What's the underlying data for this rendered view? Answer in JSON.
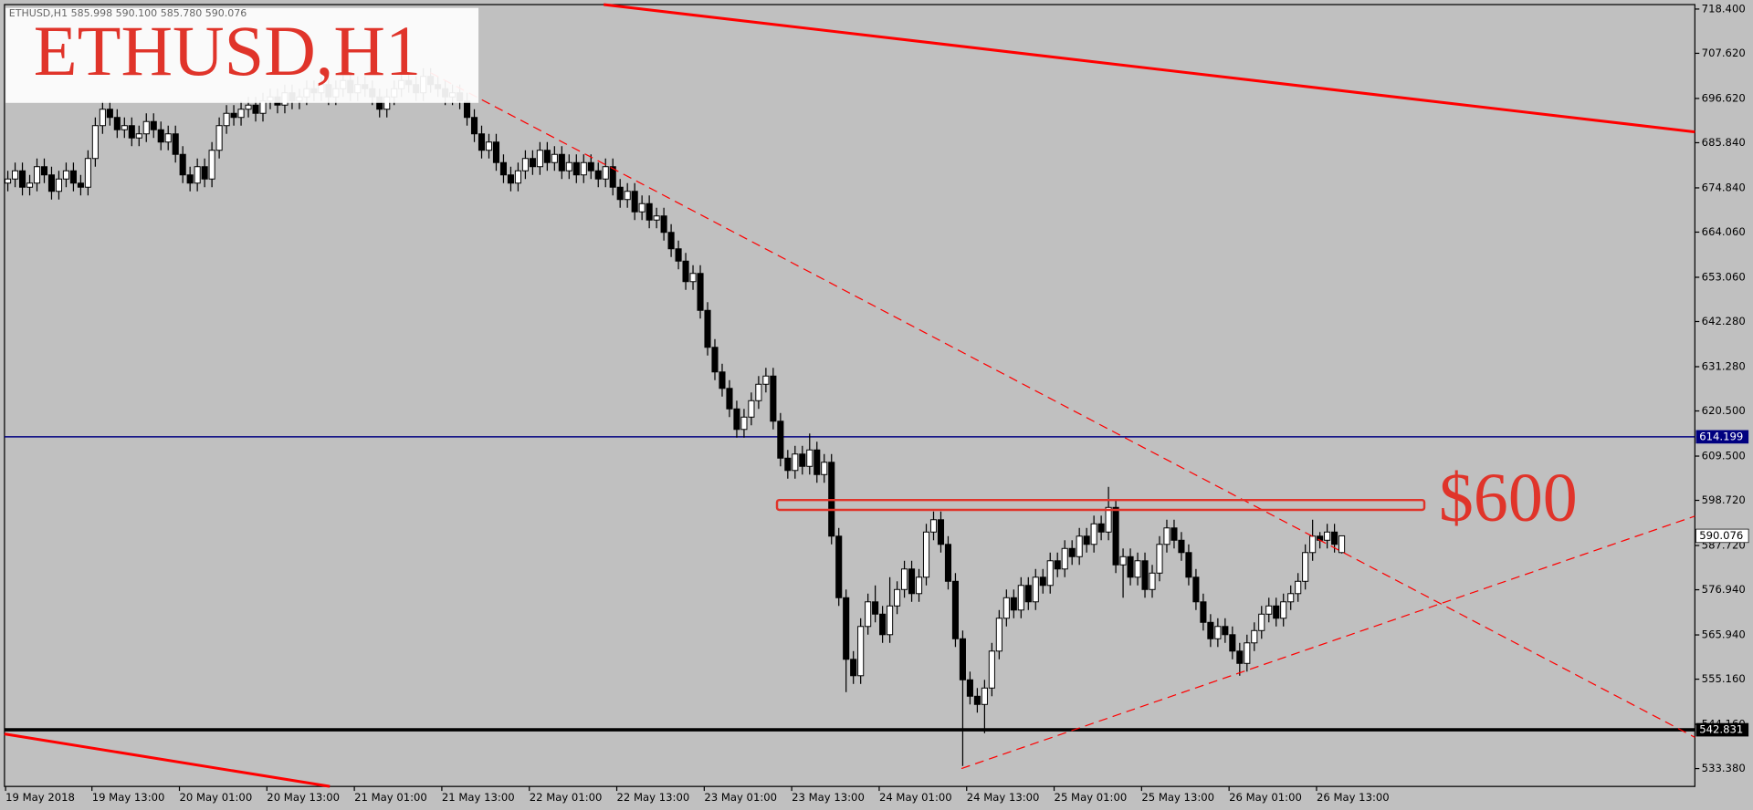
{
  "chart_data": {
    "type": "candlestick",
    "title": "ETHUSD,H1",
    "header": "ETHUSD,H1  585.998 590.100 585.780 590.076",
    "annotation": "$600",
    "zone": {
      "low": 596.4,
      "high": 598.8
    },
    "levels": [
      {
        "value": 614.199,
        "color": "#000080"
      },
      {
        "value": 542.831,
        "color": "#000000"
      }
    ],
    "ylim": [
      529.03,
      719.49
    ],
    "yticks": [
      {
        "value": 718.4,
        "label": "718.400"
      },
      {
        "value": 707.62,
        "label": "707.620"
      },
      {
        "value": 696.62,
        "label": "696.620"
      },
      {
        "value": 685.84,
        "label": "685.840"
      },
      {
        "value": 674.84,
        "label": "674.840"
      },
      {
        "value": 664.06,
        "label": "664.060"
      },
      {
        "value": 653.06,
        "label": "653.060"
      },
      {
        "value": 642.28,
        "label": "642.280"
      },
      {
        "value": 631.28,
        "label": "631.280"
      },
      {
        "value": 620.5,
        "label": "620.500"
      },
      {
        "value": 609.5,
        "label": "609.500"
      },
      {
        "value": 598.72,
        "label": "598.720"
      },
      {
        "value": 587.72,
        "label": "587.720"
      },
      {
        "value": 576.94,
        "label": "576.940"
      },
      {
        "value": 565.94,
        "label": "565.940"
      },
      {
        "value": 555.16,
        "label": "555.160"
      },
      {
        "value": 544.16,
        "label": "544.160"
      },
      {
        "value": 533.38,
        "label": "533.380"
      }
    ],
    "categories": [
      "19 May 2018",
      null,
      null,
      null,
      null,
      null,
      null,
      null,
      null,
      null,
      null,
      null,
      "19 May 13:00",
      null,
      null,
      null,
      null,
      null,
      null,
      null,
      null,
      null,
      null,
      null,
      "20 May 01:00",
      null,
      null,
      null,
      null,
      null,
      null,
      null,
      null,
      null,
      null,
      null,
      "20 May 13:00",
      null,
      null,
      null,
      null,
      null,
      null,
      null,
      null,
      null,
      null,
      null,
      "21 May 01:00",
      null,
      null,
      null,
      null,
      null,
      null,
      null,
      null,
      null,
      null,
      null,
      "21 May 13:00",
      null,
      null,
      null,
      null,
      null,
      null,
      null,
      null,
      null,
      null,
      null,
      "22 May 01:00",
      null,
      null,
      null,
      null,
      null,
      null,
      null,
      null,
      null,
      null,
      null,
      "22 May 13:00",
      null,
      null,
      null,
      null,
      null,
      null,
      null,
      null,
      null,
      null,
      null,
      "23 May 01:00",
      null,
      null,
      null,
      null,
      null,
      null,
      null,
      null,
      null,
      null,
      null,
      "23 May 13:00",
      null,
      null,
      null,
      null,
      null,
      null,
      null,
      null,
      null,
      null,
      null,
      "24 May 01:00",
      null,
      null,
      null,
      null,
      null,
      null,
      null,
      null,
      null,
      null,
      null,
      "24 May 13:00",
      null,
      null,
      null,
      null,
      null,
      null,
      null,
      null,
      null,
      null,
      null,
      "25 May 01:00",
      null,
      null,
      null,
      null,
      null,
      null,
      null,
      null,
      null,
      null,
      null,
      "25 May 13:00",
      null,
      null,
      null,
      null,
      null,
      null,
      null,
      null,
      null,
      null,
      null,
      "26 May 01:00",
      null,
      null,
      null,
      null,
      null,
      null,
      null,
      null,
      null,
      null,
      null,
      "26 May 13:00",
      null,
      null,
      null
    ],
    "open": [
      676,
      677,
      679,
      675,
      676,
      680,
      678,
      674,
      677,
      679,
      676,
      675,
      682,
      690,
      694,
      692,
      689,
      690,
      687,
      688,
      691,
      689,
      686,
      688,
      683,
      678,
      676,
      680,
      677,
      684,
      690,
      693,
      692,
      694,
      695,
      693,
      696,
      697,
      695,
      698,
      696,
      697,
      699,
      698,
      700,
      697,
      699,
      701,
      698,
      700,
      699,
      697,
      694,
      697,
      699,
      701,
      700,
      698,
      702,
      700,
      699,
      697,
      698,
      696,
      692,
      688,
      684,
      686,
      681,
      678,
      676,
      679,
      682,
      680,
      684,
      681,
      683,
      679,
      681,
      678,
      681,
      679,
      677,
      680,
      675,
      672,
      674,
      669,
      671,
      667,
      668,
      664,
      660,
      657,
      652,
      654,
      645,
      636,
      630,
      626,
      621,
      616,
      619,
      623,
      627,
      629,
      618,
      609,
      606,
      610,
      607,
      611,
      605,
      608,
      590,
      575,
      560,
      556,
      568,
      574,
      571,
      566,
      573,
      577,
      582,
      576,
      580,
      591,
      594,
      588,
      579,
      565,
      555,
      551,
      549,
      553,
      562,
      570,
      575,
      572,
      578,
      574,
      580,
      578,
      584,
      582,
      587,
      585,
      590,
      588,
      593,
      591,
      597,
      583,
      585,
      580,
      584,
      577,
      581,
      588,
      592,
      589,
      586,
      580,
      574,
      569,
      565,
      568,
      566,
      562,
      559,
      564,
      567,
      571,
      573,
      570,
      574,
      576,
      579,
      586,
      590,
      589,
      591,
      585.998
    ],
    "high": [
      679,
      681,
      681,
      678,
      682,
      682,
      680,
      679,
      681,
      681,
      678,
      684,
      692,
      696,
      696,
      694,
      692,
      692,
      690,
      693,
      693,
      691,
      690,
      690,
      685,
      680,
      682,
      682,
      686,
      692,
      695,
      695,
      696,
      697,
      697,
      698,
      699,
      699,
      700,
      700,
      699,
      701,
      701,
      702,
      702,
      701,
      703,
      703,
      702,
      702,
      701,
      699,
      699,
      701,
      703,
      703,
      702,
      704,
      704,
      702,
      701,
      700,
      700,
      698,
      694,
      690,
      688,
      688,
      683,
      680,
      681,
      684,
      684,
      686,
      686,
      685,
      685,
      683,
      683,
      683,
      683,
      681,
      682,
      682,
      677,
      676,
      676,
      673,
      673,
      670,
      670,
      666,
      662,
      659,
      656,
      656,
      647,
      638,
      632,
      628,
      623,
      621,
      625,
      629,
      631,
      631,
      620,
      611,
      612,
      612,
      615,
      613,
      610,
      610,
      592,
      577,
      562,
      570,
      576,
      578,
      573,
      580,
      579,
      584,
      584,
      582,
      593,
      596,
      596,
      590,
      581,
      567,
      557,
      553,
      555,
      564,
      572,
      577,
      577,
      580,
      580,
      582,
      582,
      586,
      586,
      589,
      589,
      592,
      592,
      595,
      595,
      602,
      599,
      587,
      587,
      586,
      586,
      583,
      590,
      594,
      594,
      591,
      588,
      582,
      576,
      571,
      570,
      570,
      568,
      564,
      566,
      569,
      573,
      575,
      575,
      576,
      578,
      581,
      588,
      594,
      591,
      593,
      593,
      590.1
    ],
    "low": [
      674,
      675,
      673,
      673,
      674,
      676,
      672,
      672,
      675,
      674,
      673,
      673,
      680,
      688,
      690,
      687,
      687,
      685,
      685,
      686,
      687,
      684,
      684,
      681,
      676,
      674,
      674,
      675,
      675,
      682,
      688,
      690,
      690,
      692,
      691,
      691,
      694,
      693,
      693,
      694,
      694,
      695,
      696,
      696,
      695,
      695,
      697,
      696,
      696,
      697,
      695,
      692,
      692,
      695,
      697,
      698,
      696,
      696,
      698,
      697,
      695,
      695,
      694,
      690,
      686,
      682,
      682,
      679,
      676,
      674,
      674,
      677,
      678,
      678,
      679,
      679,
      677,
      677,
      676,
      676,
      677,
      675,
      675,
      673,
      670,
      670,
      667,
      667,
      665,
      665,
      662,
      658,
      655,
      650,
      650,
      643,
      634,
      628,
      624,
      619,
      614,
      614,
      617,
      621,
      625,
      616,
      607,
      604,
      604,
      605,
      605,
      603,
      603,
      588,
      573,
      552,
      554,
      554,
      566,
      569,
      564,
      564,
      571,
      575,
      574,
      574,
      578,
      589,
      586,
      577,
      563,
      534,
      549,
      547,
      542,
      551,
      560,
      568,
      570,
      570,
      572,
      572,
      576,
      576,
      580,
      580,
      583,
      583,
      586,
      586,
      589,
      589,
      581,
      575,
      578,
      578,
      575,
      575,
      579,
      586,
      587,
      584,
      578,
      572,
      567,
      563,
      563,
      564,
      560,
      556,
      557,
      562,
      565,
      569,
      568,
      568,
      572,
      574,
      577,
      584,
      587,
      587,
      586,
      585.78
    ],
    "close": [
      677,
      679,
      675,
      676,
      680,
      678,
      674,
      677,
      679,
      676,
      675,
      682,
      690,
      694,
      692,
      689,
      690,
      687,
      688,
      691,
      689,
      686,
      688,
      683,
      678,
      676,
      680,
      677,
      684,
      690,
      693,
      692,
      694,
      695,
      693,
      696,
      697,
      695,
      698,
      696,
      697,
      699,
      698,
      700,
      697,
      699,
      701,
      698,
      700,
      699,
      697,
      694,
      697,
      699,
      701,
      700,
      698,
      702,
      700,
      699,
      697,
      698,
      696,
      692,
      688,
      684,
      686,
      681,
      678,
      676,
      679,
      682,
      680,
      684,
      681,
      683,
      679,
      681,
      678,
      681,
      679,
      677,
      680,
      675,
      672,
      674,
      669,
      671,
      667,
      668,
      664,
      660,
      657,
      652,
      654,
      645,
      636,
      630,
      626,
      621,
      616,
      619,
      623,
      627,
      629,
      618,
      609,
      606,
      610,
      607,
      611,
      605,
      608,
      590,
      575,
      560,
      556,
      568,
      574,
      571,
      566,
      573,
      577,
      582,
      576,
      580,
      591,
      594,
      588,
      579,
      565,
      555,
      551,
      549,
      553,
      562,
      570,
      575,
      572,
      578,
      574,
      580,
      578,
      584,
      582,
      587,
      585,
      590,
      588,
      593,
      591,
      597,
      583,
      585,
      580,
      584,
      577,
      581,
      588,
      592,
      589,
      586,
      580,
      574,
      569,
      565,
      568,
      566,
      562,
      559,
      564,
      567,
      571,
      573,
      570,
      574,
      576,
      579,
      586,
      590,
      589,
      591,
      588,
      590.076
    ]
  }
}
